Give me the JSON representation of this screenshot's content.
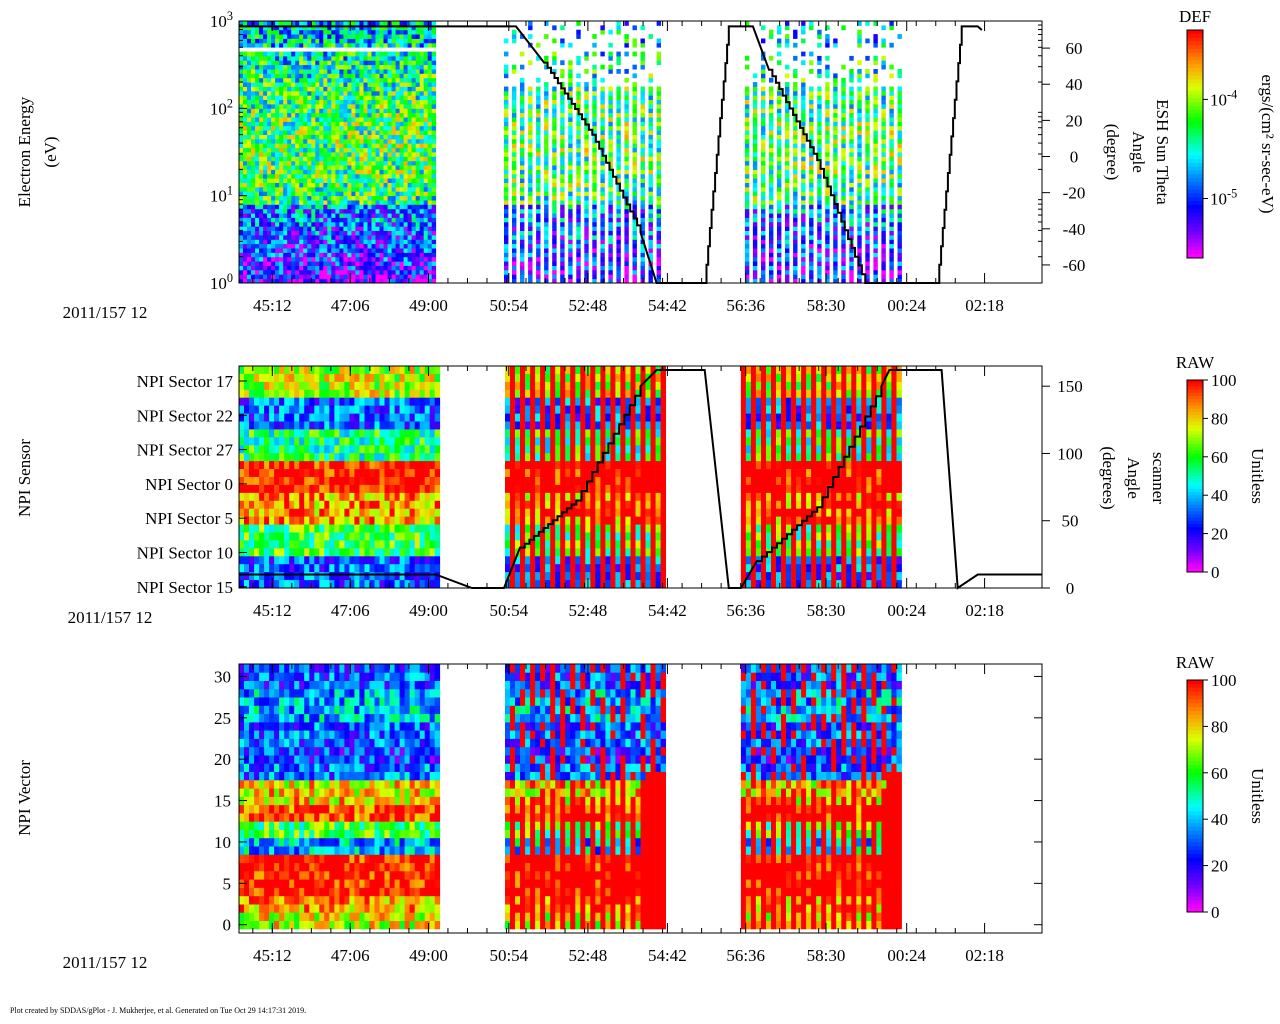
{
  "footer": "Plot created by SDDAS/gPlot - J. Mukherjee, et al.  Generated on Tue Oct 29 14:17:31 2019.",
  "time_labels": [
    "45:12",
    "47:06",
    "49:00",
    "50:54",
    "52:48",
    "54:42",
    "56:36",
    "58:30",
    "00:24",
    "02:18"
  ],
  "epoch_label": "2011/157 12",
  "gaps": [
    [
      0.245,
      0.327
    ],
    [
      0.527,
      0.623
    ],
    [
      0.822,
      1.0
    ]
  ],
  "colors": {
    "red": "#ff0000",
    "line": "#000000"
  },
  "chart_data": [
    {
      "type": "heatmap",
      "name": "electron-energy",
      "ylabel": [
        "Electron Energy",
        "(eV)"
      ],
      "yscale": "log",
      "ylim": [
        1,
        1000
      ],
      "yticks": [
        {
          "base": "10",
          "exp": "0"
        },
        {
          "base": "10",
          "exp": "1"
        },
        {
          "base": "10",
          "exp": "2"
        },
        {
          "base": "10",
          "exp": "3"
        }
      ],
      "y2label": [
        "ESH Sun Theta",
        "Angle",
        "(degree)"
      ],
      "y2lim": [
        -70,
        75
      ],
      "y2ticks": [
        "60",
        "40",
        "20",
        "0",
        "-20",
        "-40",
        "-60"
      ],
      "y2tick_values": [
        60,
        40,
        20,
        0,
        -20,
        -40,
        -60
      ],
      "colorbar": {
        "title": "DEF",
        "label": "ergs/(cm² sr-sec-eV)",
        "scale": "log",
        "ticks": [
          {
            "base": "10",
            "exp": "-4",
            "value": -4
          },
          {
            "base": "10",
            "exp": "-5",
            "value": -5
          }
        ],
        "range": [
          -5.6,
          -3.3
        ]
      },
      "overlay_angle": [
        [
          0.0,
          72
        ],
        [
          0.25,
          72
        ],
        [
          0.345,
          72
        ],
        [
          0.38,
          52
        ],
        [
          0.44,
          12
        ],
        [
          0.5,
          -42
        ],
        [
          0.52,
          -70
        ],
        [
          0.58,
          -70
        ],
        [
          0.61,
          72
        ],
        [
          0.64,
          72
        ],
        [
          0.66,
          48
        ],
        [
          0.72,
          -2
        ],
        [
          0.78,
          -70
        ],
        [
          0.87,
          -70
        ],
        [
          0.9,
          72
        ],
        [
          0.92,
          72
        ],
        [
          0.925,
          70
        ]
      ]
    },
    {
      "type": "heatmap",
      "name": "npi-sensor",
      "ylabel": [
        "NPI Sensor"
      ],
      "categories": [
        "NPI Sector 17",
        "NPI Sector 22",
        "NPI Sector 27",
        "NPI Sector 0",
        "NPI Sector 5",
        "NPI Sector 10",
        "NPI Sector 15"
      ],
      "y2label": [
        "scanner",
        "Angle",
        "(degrees)"
      ],
      "y2lim": [
        0,
        165
      ],
      "y2ticks": [
        "150",
        "100",
        "50",
        "0"
      ],
      "y2tick_values": [
        150,
        100,
        50,
        0
      ],
      "colorbar": {
        "title": "RAW",
        "label": "Unitless",
        "ticks": [
          "100",
          "80",
          "60",
          "40",
          "20",
          "0"
        ],
        "range": [
          0,
          100
        ]
      },
      "band_means": [
        72,
        30,
        55,
        100,
        85,
        60,
        30
      ],
      "overlay_angle": [
        [
          0.0,
          10
        ],
        [
          0.245,
          10
        ],
        [
          0.29,
          0
        ],
        [
          0.33,
          0
        ],
        [
          0.35,
          30
        ],
        [
          0.42,
          65
        ],
        [
          0.5,
          150
        ],
        [
          0.52,
          162
        ],
        [
          0.58,
          162
        ],
        [
          0.61,
          0
        ],
        [
          0.625,
          0
        ],
        [
          0.645,
          20
        ],
        [
          0.72,
          60
        ],
        [
          0.8,
          150
        ],
        [
          0.81,
          162
        ],
        [
          0.875,
          162
        ],
        [
          0.895,
          0
        ],
        [
          0.92,
          10
        ],
        [
          1.0,
          10
        ]
      ]
    },
    {
      "type": "heatmap",
      "name": "npi-vector",
      "ylabel": [
        "NPI Vector"
      ],
      "ylim": [
        -1,
        31.5
      ],
      "yticks": [
        "0",
        "5",
        "10",
        "15",
        "20",
        "25",
        "30"
      ],
      "ytick_values": [
        0,
        5,
        10,
        15,
        20,
        25,
        30
      ],
      "colorbar": {
        "title": "RAW",
        "label": "Unitless",
        "ticks": [
          "100",
          "80",
          "60",
          "40",
          "20",
          "0"
        ],
        "range": [
          0,
          100
        ]
      },
      "band_means": [
        28,
        38,
        40,
        30,
        25,
        32,
        80,
        95,
        60,
        40,
        100,
        100,
        85,
        75
      ]
    }
  ]
}
